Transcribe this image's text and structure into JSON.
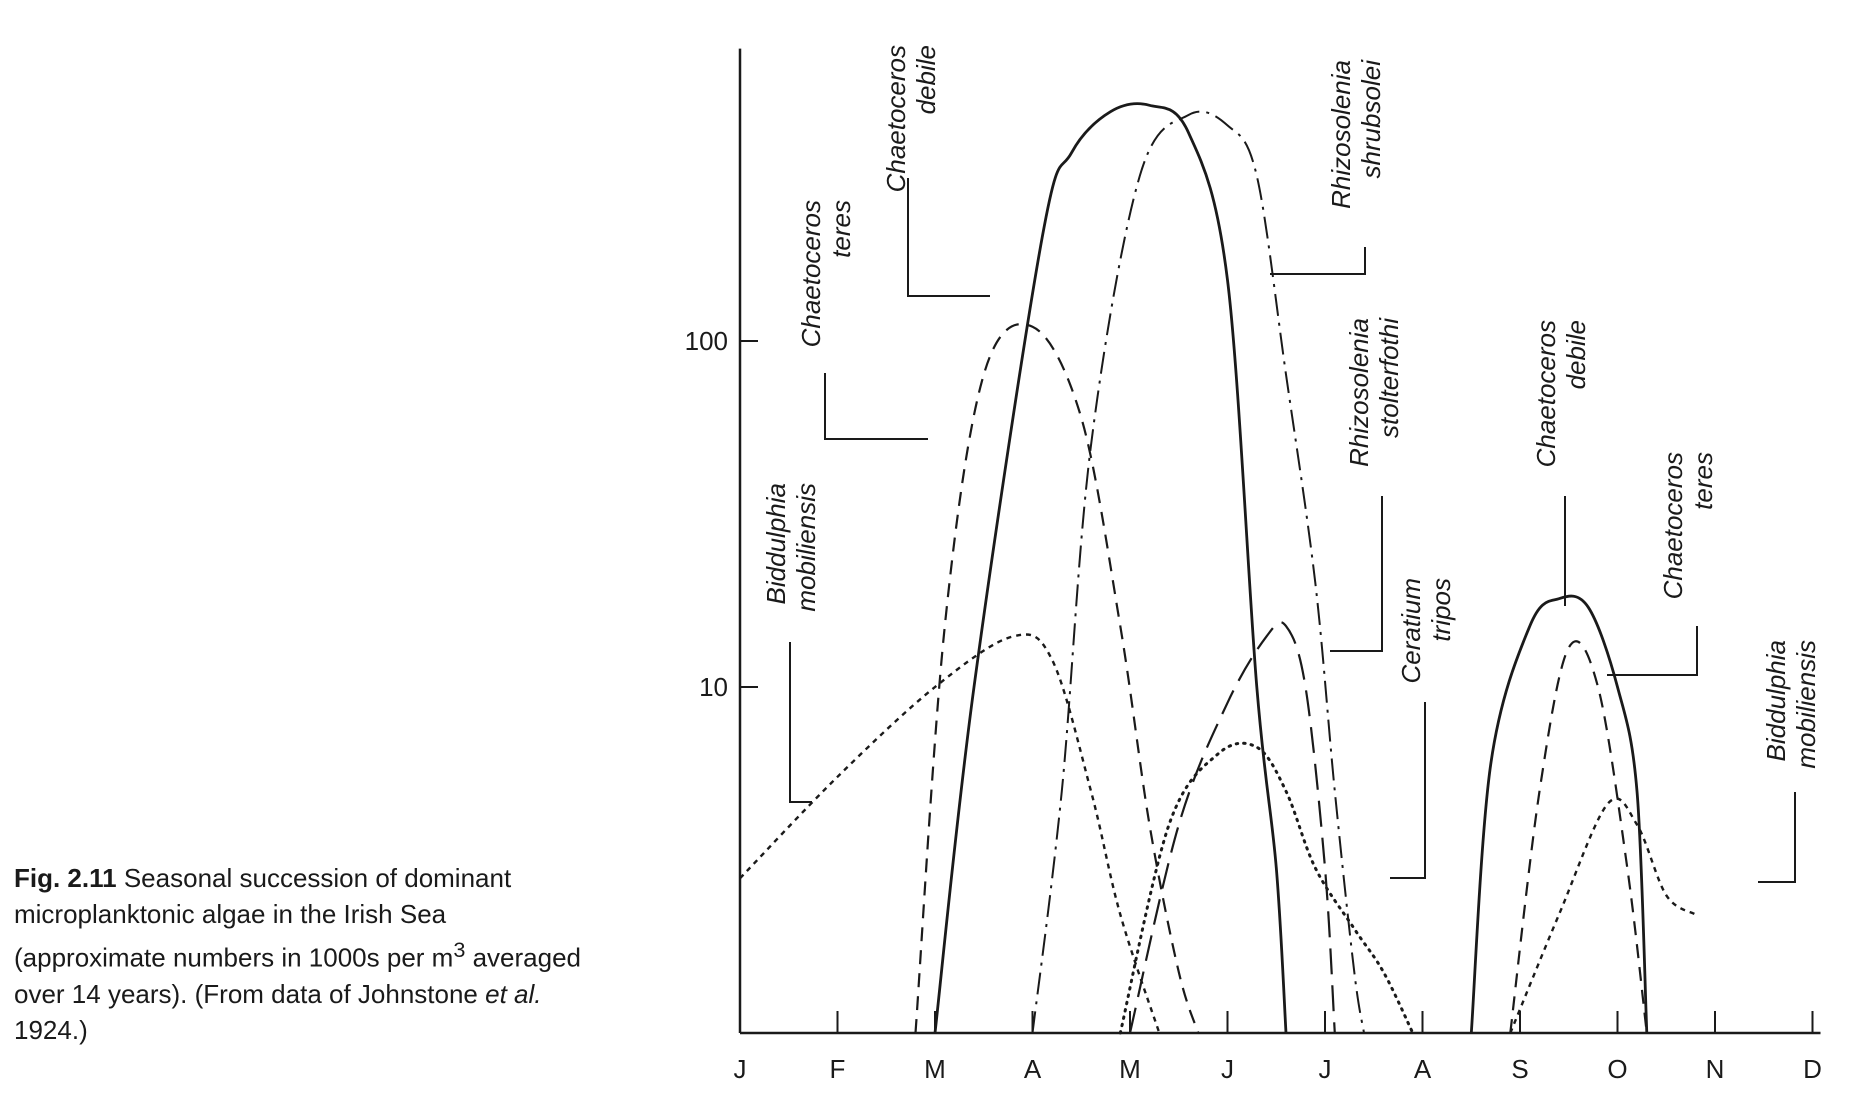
{
  "caption": {
    "fig_number": "Fig. 2.11",
    "text_before_sup": "Seasonal succession of dominant microplanktonic algae in the Irish Sea (approximate numbers in 1000s per m",
    "sup": "3",
    "text_after_sup": " averaged over 14 years). (From data of Johnstone ",
    "et_al": "et al.",
    "text_end": " 1924.)"
  },
  "chart_data": {
    "type": "line",
    "y_scale": "log",
    "xlabel": "",
    "ylabel": "",
    "ylim": [
      1,
      700
    ],
    "yticks": [
      {
        "value": 10,
        "label": "10"
      },
      {
        "value": 100,
        "label": "100"
      }
    ],
    "months": [
      "J",
      "F",
      "M",
      "A",
      "M",
      "J",
      "J",
      "A",
      "S",
      "O",
      "N",
      "D"
    ],
    "grid": false,
    "series": [
      {
        "name": "Chaetoceros debile",
        "style": "solid",
        "points": [
          [
            2.0,
            1
          ],
          [
            2.4,
            10
          ],
          [
            3.1,
            200
          ],
          [
            3.4,
            350
          ],
          [
            3.8,
            460
          ],
          [
            4.2,
            480
          ],
          [
            4.6,
            400
          ],
          [
            5.0,
            150
          ],
          [
            5.3,
            10
          ],
          [
            5.5,
            3
          ],
          [
            5.6,
            1
          ]
        ],
        "points2": [
          [
            7.5,
            1
          ],
          [
            7.7,
            6
          ],
          [
            8.1,
            15
          ],
          [
            8.4,
            18
          ],
          [
            8.7,
            17
          ],
          [
            9.0,
            10
          ],
          [
            9.2,
            5
          ],
          [
            9.3,
            1
          ]
        ]
      },
      {
        "name": "Rhizosolenia shrubsolei",
        "style": "dashdot",
        "points": [
          [
            3.0,
            1
          ],
          [
            3.3,
            5
          ],
          [
            3.6,
            50
          ],
          [
            4.1,
            300
          ],
          [
            4.6,
            450
          ],
          [
            5.0,
            420
          ],
          [
            5.3,
            300
          ],
          [
            5.6,
            80
          ],
          [
            5.9,
            20
          ],
          [
            6.1,
            5
          ],
          [
            6.3,
            1.5
          ],
          [
            6.4,
            1
          ]
        ]
      },
      {
        "name": "Chaetoceros teres",
        "style": "dashed",
        "points": [
          [
            1.8,
            1
          ],
          [
            2.1,
            15
          ],
          [
            2.5,
            80
          ],
          [
            3.0,
            110
          ],
          [
            3.5,
            60
          ],
          [
            3.9,
            15
          ],
          [
            4.2,
            4
          ],
          [
            4.5,
            1.5
          ],
          [
            4.7,
            1
          ]
        ],
        "points2": [
          [
            7.9,
            1
          ],
          [
            8.2,
            5
          ],
          [
            8.5,
            13
          ],
          [
            8.8,
            10
          ],
          [
            9.1,
            3
          ],
          [
            9.3,
            1
          ]
        ]
      },
      {
        "name": "Biddulphia mobiliensis",
        "style": "dotted",
        "points": [
          [
            0,
            2.8
          ],
          [
            1,
            5.5
          ],
          [
            2,
            10
          ],
          [
            2.8,
            14
          ],
          [
            3.2,
            12
          ],
          [
            3.6,
            5
          ],
          [
            3.9,
            2.2
          ],
          [
            4.3,
            1
          ]
        ],
        "points2": [
          [
            7.9,
            1
          ],
          [
            8.4,
            2.2
          ],
          [
            8.9,
            4.6
          ],
          [
            9.2,
            4
          ],
          [
            9.5,
            2.5
          ],
          [
            9.8,
            2.2
          ]
        ]
      },
      {
        "name": "Rhizosolenia stolterfothi",
        "style": "longdash",
        "points": [
          [
            4.0,
            1
          ],
          [
            4.5,
            4
          ],
          [
            5.0,
            9
          ],
          [
            5.4,
            14
          ],
          [
            5.6,
            15
          ],
          [
            5.8,
            10
          ],
          [
            6.0,
            3
          ],
          [
            6.1,
            1
          ]
        ]
      },
      {
        "name": "Ceratium tripos",
        "style": "dotted-fine",
        "points": [
          [
            3.9,
            1
          ],
          [
            4.4,
            4
          ],
          [
            4.9,
            6.4
          ],
          [
            5.3,
            6.7
          ],
          [
            5.6,
            5
          ],
          [
            5.9,
            3
          ],
          [
            6.3,
            2
          ],
          [
            6.6,
            1.5
          ],
          [
            6.9,
            1
          ]
        ]
      }
    ],
    "labels": [
      {
        "line1": "Chaetoceros",
        "line2": "debile"
      },
      {
        "line1": "Rhizosolenia",
        "line2": "shrubsolei"
      },
      {
        "line1": "Chaetoceros",
        "line2": "teres"
      },
      {
        "line1": "Rhizosolenia",
        "line2": "stolterfothi"
      },
      {
        "line1": "Biddulphia",
        "line2": "mobiliensis"
      },
      {
        "line1": "Ceratium",
        "line2": "tripos"
      },
      {
        "line1": "Chaetoceros",
        "line2": "debile"
      },
      {
        "line1": "Chaetoceros",
        "line2": "teres"
      },
      {
        "line1": "Biddulphia",
        "line2": "mobiliensis"
      }
    ]
  }
}
